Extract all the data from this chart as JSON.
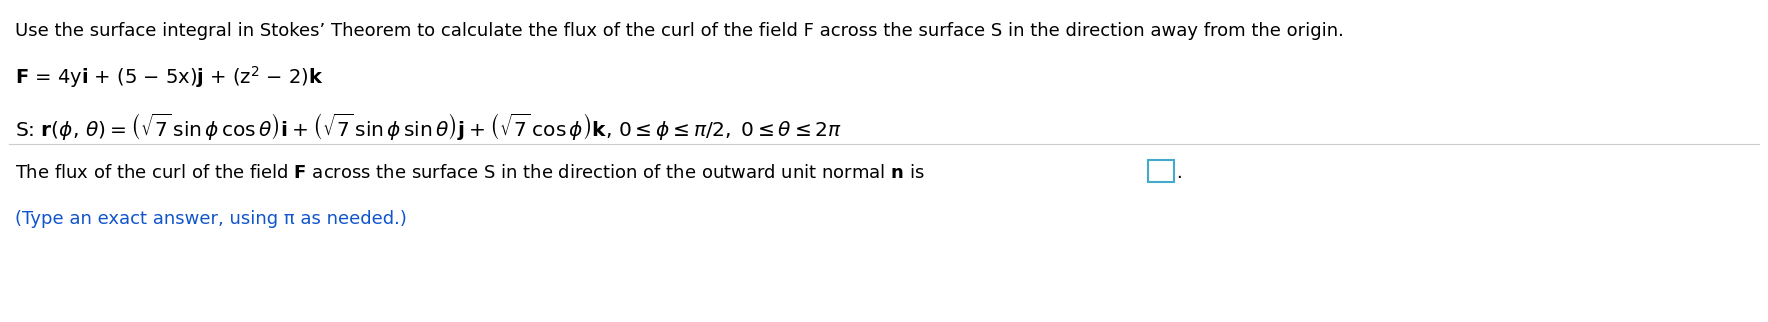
{
  "bg": "#ffffff",
  "tc": "#000000",
  "blue": "#1155CC",
  "box_edge": "#44AACC",
  "divider": "#CCCCCC",
  "fs": 13.0,
  "fs_math": 14.0,
  "fs_blue": 13.0,
  "fs_super": 9.0,
  "lw_div": 0.8,
  "line1_pre": "Use the surface integral in Stokes’ Theorem to calculate the flux of the curl of the field ",
  "line1_F": "F",
  "line1_post": " across the surface S in the direction away from the origin.",
  "line4_pre": "The flux of the curl of the field ",
  "line4_F": "F",
  "line4_mid": " across the surface S in the direction of the outward unit normal ",
  "line4_n": "n",
  "line4_post": " is",
  "line5": "(Type an exact answer, using π as needed.)"
}
